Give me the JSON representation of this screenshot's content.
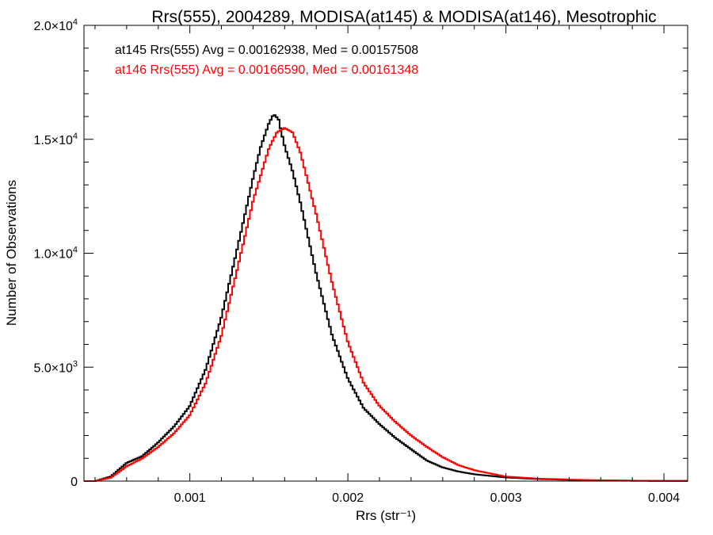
{
  "chart_data": {
    "type": "line",
    "title": "Rrs(555), 2004289, MODISA(at145) & MODISA(at146), Mesotrophic",
    "xlabel": "Rrs (str⁻¹)",
    "ylabel": "Number of Observations",
    "xlim": [
      0.00033,
      0.00415
    ],
    "ylim": [
      0,
      20000
    ],
    "x_ticks": [
      0.001,
      0.002,
      0.003,
      0.004
    ],
    "x_tick_labels": [
      "0.001",
      "0.002",
      "0.003",
      "0.004"
    ],
    "y_ticks": [
      0,
      5000,
      10000,
      15000,
      20000
    ],
    "y_tick_labels": [
      {
        "base": "0",
        "exp": ""
      },
      {
        "base": "5.0×10",
        "exp": "3"
      },
      {
        "base": "1.0×10",
        "exp": "4"
      },
      {
        "base": "1.5×10",
        "exp": "4"
      },
      {
        "base": "2.0×10",
        "exp": "4"
      }
    ],
    "grid": false,
    "legend_placement": "top-left",
    "series": [
      {
        "name": "at145",
        "color": "#000000",
        "label": "at145 Rrs(555) Avg = 0.00162938, Med = 0.00157508",
        "x": [
          0.00033,
          0.0004,
          0.0005,
          0.0006,
          0.0007,
          0.0008,
          0.0009,
          0.001,
          0.0011,
          0.0012,
          0.0013,
          0.0014,
          0.00145,
          0.0015,
          0.00153,
          0.00156,
          0.0016,
          0.00165,
          0.0017,
          0.0018,
          0.0019,
          0.002,
          0.0021,
          0.0022,
          0.0023,
          0.0024,
          0.0025,
          0.0026,
          0.0027,
          0.0028,
          0.003,
          0.0032,
          0.0035,
          0.0038,
          0.00415
        ],
        "y": [
          0,
          0,
          200,
          800,
          1100,
          1700,
          2400,
          3300,
          4900,
          7200,
          10200,
          13300,
          14700,
          15700,
          16100,
          15900,
          14700,
          13600,
          12200,
          9100,
          6400,
          4500,
          3200,
          2500,
          1900,
          1400,
          900,
          600,
          420,
          300,
          160,
          90,
          40,
          15,
          5
        ]
      },
      {
        "name": "at146",
        "color": "#ff0000",
        "label": "at146 Rrs(555) Avg = 0.00166590, Med = 0.00161348",
        "x": [
          0.00033,
          0.0004,
          0.0005,
          0.0006,
          0.0007,
          0.0008,
          0.0009,
          0.001,
          0.0011,
          0.0012,
          0.0013,
          0.0014,
          0.0015,
          0.00155,
          0.0016,
          0.00165,
          0.0017,
          0.0018,
          0.0019,
          0.002,
          0.0021,
          0.0022,
          0.0023,
          0.0024,
          0.0025,
          0.0026,
          0.0027,
          0.0028,
          0.003,
          0.0032,
          0.0035,
          0.0038,
          0.00415
        ],
        "y": [
          0,
          0,
          150,
          650,
          1000,
          1500,
          2100,
          2900,
          4300,
          6400,
          9300,
          12300,
          14600,
          15300,
          15500,
          15300,
          14400,
          11700,
          8700,
          6100,
          4300,
          3300,
          2600,
          2000,
          1500,
          1050,
          700,
          480,
          200,
          110,
          50,
          20,
          6
        ]
      }
    ]
  }
}
